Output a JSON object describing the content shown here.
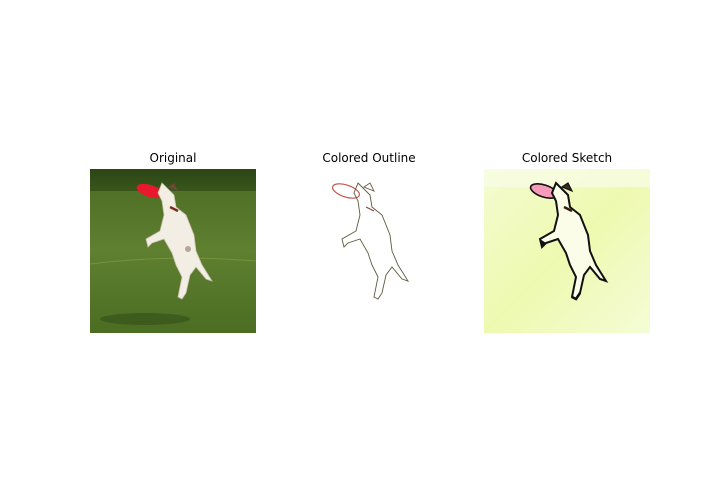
{
  "figure": {
    "panels": [
      {
        "title": "Original"
      },
      {
        "title": "Colored Outline"
      },
      {
        "title": "Colored Sketch"
      }
    ]
  },
  "colors": {
    "grass_dark": "#3c5a1e",
    "grass_mid": "#5f7f2a",
    "grass_light": "#7e9a3a",
    "dog_white": "#f3eee4",
    "frisbee_red": "#e8192c",
    "sketch_bg": "#f1fbbf",
    "frisbee_pink": "#f59ab9"
  }
}
